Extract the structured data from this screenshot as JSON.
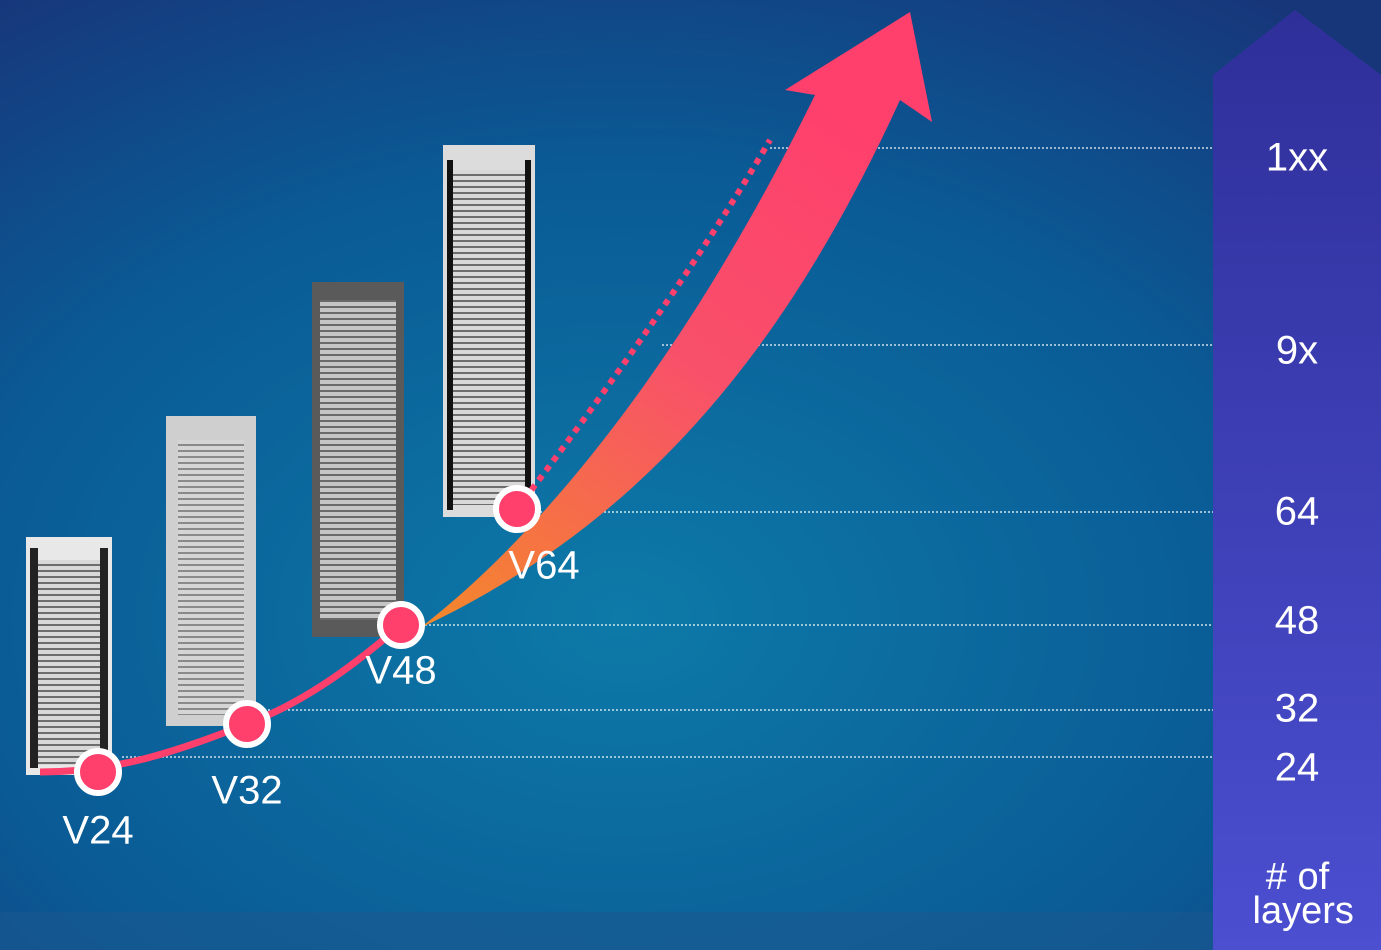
{
  "points": [
    {
      "label": "V24"
    },
    {
      "label": "V32"
    },
    {
      "label": "V48"
    },
    {
      "label": "V64"
    }
  ],
  "levels": [
    "1xx",
    "9x",
    "64",
    "48",
    "32",
    "24"
  ],
  "axis_title": "# of layers"
}
